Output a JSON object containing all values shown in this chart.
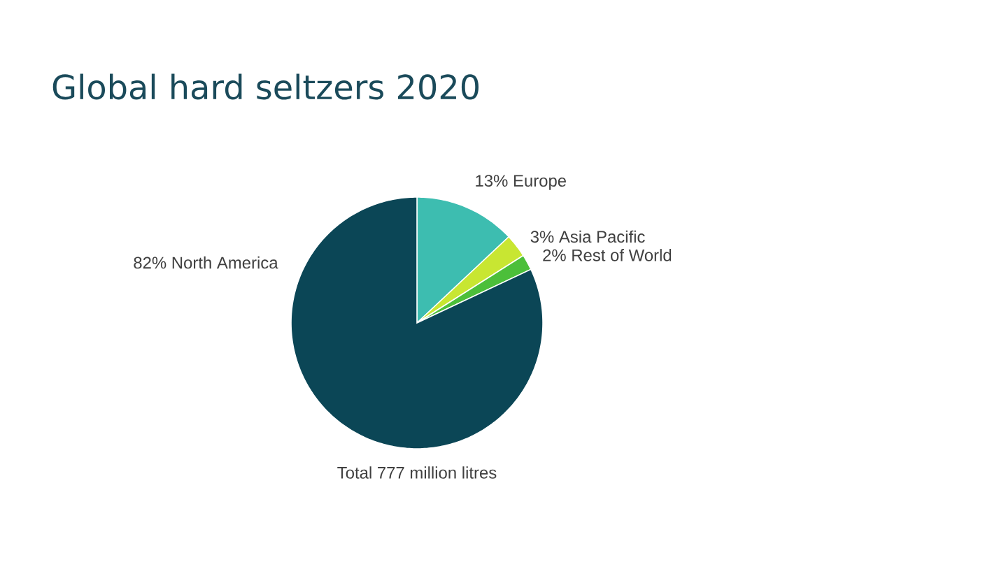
{
  "chart_data": {
    "type": "pie",
    "title": "Global hard seltzers 2020",
    "categories": [
      "Europe",
      "Asia Pacific",
      "Rest of World",
      "North America"
    ],
    "values": [
      13,
      3,
      2,
      82
    ],
    "value_labels": [
      "13%",
      "3%",
      "2%",
      "82%"
    ],
    "colors": [
      "#3dbdb0",
      "#c8e632",
      "#4cbf3a",
      "#0b4656"
    ],
    "annotations": [
      "Total 777 million litres"
    ]
  }
}
